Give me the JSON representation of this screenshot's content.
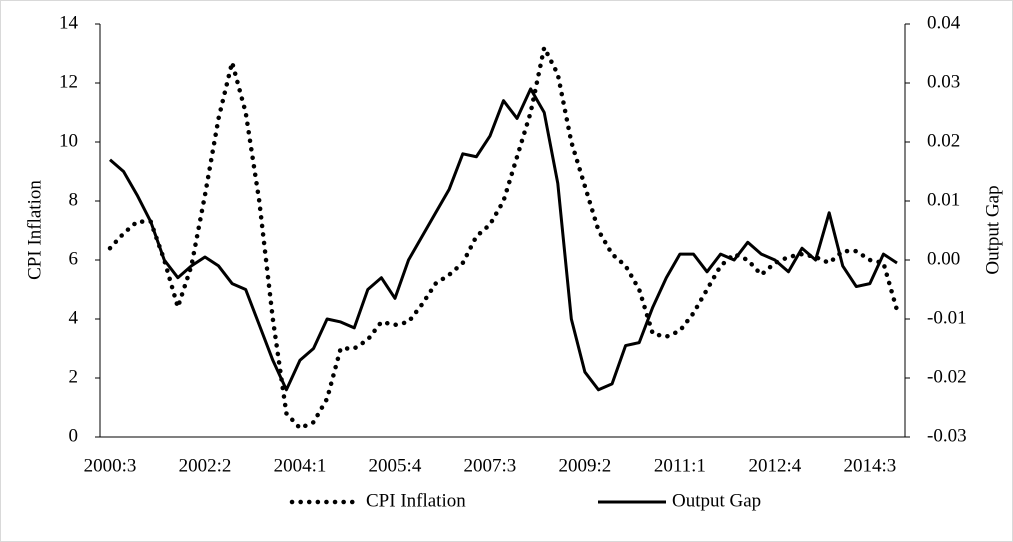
{
  "chart_data": {
    "type": "line",
    "categories": [
      "2000:3",
      null,
      null,
      null,
      null,
      null,
      null,
      "2002:2",
      null,
      null,
      null,
      null,
      null,
      null,
      "2004:1",
      null,
      null,
      null,
      null,
      null,
      null,
      "2005:4",
      null,
      null,
      null,
      null,
      null,
      null,
      "2007:3",
      null,
      null,
      null,
      null,
      null,
      null,
      "2009:2",
      null,
      null,
      null,
      null,
      null,
      null,
      "2011:1",
      null,
      null,
      null,
      null,
      null,
      null,
      "2012:4",
      null,
      null,
      null,
      null,
      null,
      null,
      "2014:3",
      null,
      null
    ],
    "series": [
      {
        "name": "CPI Inflation",
        "color": "#000000",
        "style": "dotted",
        "values": [
          6.4,
          6.9,
          7.3,
          7.3,
          6.0,
          4.4,
          5.8,
          8.2,
          10.8,
          12.7,
          11.0,
          8.0,
          4.0,
          0.8,
          0.3,
          0.5,
          1.3,
          3.0,
          3.0,
          3.3,
          3.9,
          3.8,
          3.9,
          4.5,
          5.2,
          5.5,
          5.9,
          6.8,
          7.2,
          8.0,
          9.5,
          11.0,
          13.2,
          12.3,
          10.0,
          8.5,
          7.0,
          6.2,
          5.8,
          5.0,
          3.5,
          3.4,
          3.6,
          4.2,
          5.0,
          5.8,
          6.2,
          6.0,
          5.5,
          5.9,
          6.1,
          6.2,
          6.1,
          5.9,
          6.3,
          6.3,
          6.0,
          5.9,
          4.3
        ]
      },
      {
        "name": "Output Gap",
        "color": "#000000",
        "style": "solid",
        "axis": "y2",
        "values": [
          0.017,
          0.015,
          0.011,
          0.0065,
          0.0,
          -0.003,
          -0.001,
          0.0005,
          -0.001,
          -0.004,
          -0.005,
          -0.011,
          -0.017,
          -0.022,
          -0.017,
          -0.015,
          -0.01,
          -0.0105,
          -0.0115,
          -0.005,
          -0.003,
          -0.0065,
          0.0,
          0.004,
          0.008,
          0.012,
          0.018,
          0.0175,
          0.021,
          0.027,
          0.024,
          0.029,
          0.025,
          0.013,
          -0.01,
          -0.019,
          -0.022,
          -0.021,
          -0.0145,
          -0.014,
          -0.008,
          -0.003,
          0.001,
          0.001,
          -0.002,
          0.001,
          0.0,
          0.003,
          0.001,
          0.0,
          -0.002,
          0.002,
          0.0,
          0.008,
          -0.001,
          -0.0045,
          -0.004,
          0.001,
          -0.0005
        ]
      }
    ],
    "y_label": "CPI Inflation",
    "y2_label": "Output Gap",
    "ylim": [
      0,
      14
    ],
    "yticks": [
      0,
      2,
      4,
      6,
      8,
      10,
      12,
      14
    ],
    "y2lim": [
      -0.03,
      0.04
    ],
    "y2ticks": [
      -0.03,
      -0.02,
      -0.01,
      {
        "value": 0,
        "label": "0.00"
      },
      0.01,
      0.02,
      0.03,
      0.04
    ],
    "legend": "bottom",
    "grid": false
  }
}
